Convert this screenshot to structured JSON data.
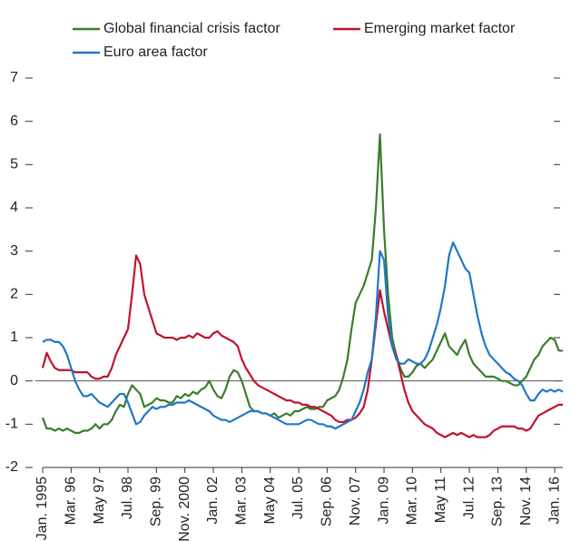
{
  "chart_data": {
    "type": "line",
    "categories": [
      "Jan. 1995",
      null,
      null,
      null,
      null,
      null,
      null,
      "Mar. 96",
      null,
      null,
      null,
      null,
      null,
      null,
      "May 97",
      null,
      null,
      null,
      null,
      null,
      null,
      "Jul. 98",
      null,
      null,
      null,
      null,
      null,
      null,
      "Sep. 99",
      null,
      null,
      null,
      null,
      null,
      null,
      "Nov. 2000",
      null,
      null,
      null,
      null,
      null,
      null,
      "Jan. 02",
      null,
      null,
      null,
      null,
      null,
      null,
      "Mar. 03",
      null,
      null,
      null,
      null,
      null,
      null,
      "May 04",
      null,
      null,
      null,
      null,
      null,
      null,
      "Jul. 05",
      null,
      null,
      null,
      null,
      null,
      null,
      "Sep. 06",
      null,
      null,
      null,
      null,
      null,
      null,
      "Nov. 07",
      null,
      null,
      null,
      null,
      null,
      null,
      "Jan. 09",
      null,
      null,
      null,
      null,
      null,
      null,
      "Mar. 10",
      null,
      null,
      null,
      null,
      null,
      null,
      "May 11",
      null,
      null,
      null,
      null,
      null,
      null,
      "Jul. 12",
      null,
      null,
      null,
      null,
      null,
      null,
      "Sep. 13",
      null,
      null,
      null,
      null,
      null,
      null,
      "Nov. 14",
      null,
      null,
      null,
      null,
      null,
      null,
      "Jan. 16",
      null,
      null
    ],
    "series": [
      {
        "name": "Global financial crisis factor",
        "color": "#3a7d2c",
        "values": [
          -0.85,
          -1.1,
          -1.1,
          -1.15,
          -1.1,
          -1.15,
          -1.1,
          -1.15,
          -1.2,
          -1.2,
          -1.15,
          -1.15,
          -1.1,
          -1.0,
          -1.1,
          -1.0,
          -1.0,
          -0.9,
          -0.7,
          -0.55,
          -0.6,
          -0.3,
          -0.1,
          -0.2,
          -0.3,
          -0.6,
          -0.55,
          -0.5,
          -0.4,
          -0.45,
          -0.45,
          -0.5,
          -0.5,
          -0.35,
          -0.4,
          -0.3,
          -0.35,
          -0.25,
          -0.3,
          -0.2,
          -0.15,
          0.0,
          -0.2,
          -0.35,
          -0.4,
          -0.2,
          0.1,
          0.25,
          0.2,
          0.0,
          -0.3,
          -0.6,
          -0.7,
          -0.7,
          -0.75,
          -0.75,
          -0.8,
          -0.75,
          -0.85,
          -0.8,
          -0.75,
          -0.8,
          -0.7,
          -0.7,
          -0.65,
          -0.6,
          -0.65,
          -0.65,
          -0.6,
          -0.6,
          -0.45,
          -0.4,
          -0.35,
          -0.2,
          0.1,
          0.5,
          1.2,
          1.8,
          2.0,
          2.2,
          2.5,
          2.8,
          4.0,
          5.7,
          3.5,
          2.0,
          1.0,
          0.6,
          0.3,
          0.1,
          0.1,
          0.2,
          0.35,
          0.4,
          0.3,
          0.4,
          0.5,
          0.7,
          0.9,
          1.1,
          0.8,
          0.7,
          0.6,
          0.8,
          0.95,
          0.6,
          0.4,
          0.3,
          0.2,
          0.1,
          0.1,
          0.1,
          0.05,
          0.0,
          0.0,
          -0.05,
          -0.1,
          -0.1,
          0.0,
          0.1,
          0.3,
          0.5,
          0.6,
          0.8,
          0.9,
          1.0,
          0.95,
          0.7,
          0.7
        ]
      },
      {
        "name": "Emerging market factor",
        "color": "#c0132f",
        "values": [
          0.3,
          0.65,
          0.45,
          0.3,
          0.25,
          0.25,
          0.25,
          0.25,
          0.2,
          0.2,
          0.2,
          0.2,
          0.1,
          0.05,
          0.05,
          0.1,
          0.1,
          0.3,
          0.6,
          0.8,
          1.0,
          1.2,
          2.0,
          2.9,
          2.7,
          2.0,
          1.7,
          1.4,
          1.1,
          1.05,
          1.0,
          1.0,
          1.0,
          0.95,
          1.0,
          1.0,
          1.05,
          1.0,
          1.1,
          1.05,
          1.0,
          1.0,
          1.1,
          1.15,
          1.05,
          1.0,
          0.95,
          0.9,
          0.8,
          0.5,
          0.3,
          0.15,
          0.0,
          -0.1,
          -0.15,
          -0.2,
          -0.25,
          -0.3,
          -0.35,
          -0.4,
          -0.45,
          -0.45,
          -0.5,
          -0.5,
          -0.55,
          -0.55,
          -0.6,
          -0.6,
          -0.65,
          -0.7,
          -0.75,
          -0.8,
          -0.9,
          -0.95,
          -0.95,
          -0.9,
          -0.9,
          -0.85,
          -0.75,
          -0.6,
          -0.2,
          0.5,
          1.3,
          2.1,
          1.6,
          1.2,
          0.8,
          0.6,
          0.2,
          -0.2,
          -0.5,
          -0.7,
          -0.8,
          -0.9,
          -1.0,
          -1.05,
          -1.1,
          -1.2,
          -1.25,
          -1.3,
          -1.25,
          -1.2,
          -1.25,
          -1.2,
          -1.25,
          -1.3,
          -1.25,
          -1.3,
          -1.3,
          -1.3,
          -1.25,
          -1.15,
          -1.1,
          -1.05,
          -1.05,
          -1.05,
          -1.05,
          -1.1,
          -1.1,
          -1.15,
          -1.1,
          -0.95,
          -0.8,
          -0.75,
          -0.7,
          -0.65,
          -0.6,
          -0.55,
          -0.55
        ]
      },
      {
        "name": "Euro area factor",
        "color": "#1f78c8",
        "values": [
          0.9,
          0.95,
          0.95,
          0.9,
          0.9,
          0.8,
          0.6,
          0.3,
          0.0,
          -0.2,
          -0.35,
          -0.35,
          -0.3,
          -0.4,
          -0.5,
          -0.55,
          -0.6,
          -0.5,
          -0.4,
          -0.3,
          -0.3,
          -0.5,
          -0.75,
          -1.0,
          -0.95,
          -0.8,
          -0.7,
          -0.6,
          -0.65,
          -0.6,
          -0.6,
          -0.55,
          -0.55,
          -0.5,
          -0.5,
          -0.5,
          -0.45,
          -0.5,
          -0.55,
          -0.6,
          -0.65,
          -0.7,
          -0.8,
          -0.85,
          -0.9,
          -0.9,
          -0.95,
          -0.9,
          -0.85,
          -0.8,
          -0.75,
          -0.7,
          -0.7,
          -0.7,
          -0.75,
          -0.75,
          -0.8,
          -0.85,
          -0.9,
          -0.95,
          -1.0,
          -1.0,
          -1.0,
          -1.0,
          -0.95,
          -0.9,
          -0.9,
          -0.95,
          -1.0,
          -1.0,
          -1.05,
          -1.05,
          -1.1,
          -1.05,
          -1.0,
          -0.95,
          -0.9,
          -0.7,
          -0.5,
          -0.2,
          0.2,
          0.5,
          1.5,
          3.0,
          2.8,
          1.5,
          0.8,
          0.5,
          0.4,
          0.4,
          0.5,
          0.45,
          0.4,
          0.4,
          0.5,
          0.7,
          1.0,
          1.3,
          1.7,
          2.2,
          2.9,
          3.2,
          3.0,
          2.8,
          2.6,
          2.5,
          2.0,
          1.5,
          1.1,
          0.8,
          0.6,
          0.5,
          0.4,
          0.3,
          0.2,
          0.15,
          0.05,
          0.0,
          -0.1,
          -0.3,
          -0.45,
          -0.45,
          -0.3,
          -0.2,
          -0.25,
          -0.2,
          -0.25,
          -0.2,
          -0.25
        ]
      }
    ],
    "ylim": [
      -2,
      7
    ],
    "yticks": [
      -2,
      -1,
      0,
      1,
      2,
      3,
      4,
      5,
      6,
      7
    ]
  }
}
